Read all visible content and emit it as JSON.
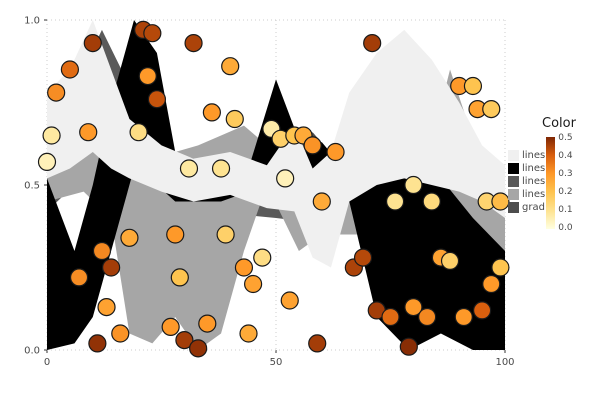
{
  "chart_data": {
    "type": "area",
    "subtype": [
      "ribbon-bands",
      "scatter"
    ],
    "title": "",
    "xlabel": "",
    "ylabel": "",
    "axes": {
      "xlim": [
        0,
        100
      ],
      "ylim": [
        0,
        1
      ],
      "x_ticks": [
        {
          "value": 0,
          "label": "0"
        },
        {
          "value": 50,
          "label": "50"
        },
        {
          "value": 100,
          "label": "100"
        }
      ],
      "y_ticks": [
        {
          "value": 0,
          "label": "0.0"
        },
        {
          "value": 0.5,
          "label": "0.5"
        },
        {
          "value": 1,
          "label": "1.0"
        }
      ],
      "grid": "dotted"
    },
    "legend": {
      "title": "Color",
      "fills": [
        {
          "label": "lines",
          "color": "#f0f0f0"
        },
        {
          "label": "lines",
          "color": "#000000"
        },
        {
          "label": "lines",
          "color": "#5a5a5a"
        },
        {
          "label": "lines",
          "color": "#a6a6a6"
        },
        {
          "label": "grad",
          "color": "#4d4d4d"
        }
      ],
      "colorbar_ticks": [
        "0.5",
        "0.4",
        "0.3",
        "0.2",
        "0.1",
        "0.0"
      ],
      "colorbar_range": [
        0,
        0.5
      ]
    },
    "colormap": {
      "stops": [
        [
          0.0,
          "#ffffe0"
        ],
        [
          0.1,
          "#fee391"
        ],
        [
          0.2,
          "#fec44f"
        ],
        [
          0.3,
          "#fe9929"
        ],
        [
          0.4,
          "#d95f0e"
        ],
        [
          0.5,
          "#7f2704"
        ]
      ]
    },
    "ribbons": [
      {
        "label": "lines",
        "color": "#5a5a5a",
        "x": [
          0,
          6,
          12,
          18,
          24,
          35,
          50,
          62,
          75,
          88,
          95,
          100
        ],
        "ymax": [
          0.6,
          0.8,
          0.97,
          0.8,
          0.62,
          0.55,
          0.52,
          0.5,
          0.52,
          0.55,
          0.5,
          0.45
        ],
        "ymin": [
          0.42,
          0.5,
          0.55,
          0.5,
          0.45,
          0.42,
          0.4,
          0.38,
          0.4,
          0.42,
          0.1,
          0.0
        ]
      },
      {
        "label": "grad",
        "color": "#4d4d4d",
        "x": [
          46,
          52,
          58,
          63,
          68
        ],
        "ymax": [
          0.58,
          0.62,
          0.66,
          0.58,
          0.54
        ],
        "ymin": [
          0.52,
          0.5,
          0.52,
          0.5,
          0.48
        ]
      },
      {
        "label": "lines",
        "color": "#a6a6a6",
        "x": [
          0,
          8,
          14,
          18,
          23,
          28,
          33,
          38,
          43,
          48,
          55,
          60,
          68,
          75,
          82,
          88,
          94,
          100
        ],
        "ymax": [
          0.55,
          0.62,
          0.6,
          0.62,
          0.65,
          0.6,
          0.62,
          0.65,
          0.68,
          0.62,
          0.6,
          0.55,
          0.5,
          0.5,
          0.52,
          0.85,
          0.6,
          0.5
        ],
        "ymin": [
          0.45,
          0.48,
          0.4,
          0.05,
          0.02,
          0.1,
          0.0,
          0.05,
          0.3,
          0.5,
          0.3,
          0.35,
          0.35,
          0.3,
          0.25,
          0.15,
          0.1,
          0.05
        ]
      },
      {
        "label": "lines",
        "color": "#000000",
        "x": [
          0,
          6,
          10,
          14,
          19,
          24,
          28,
          38,
          44,
          50,
          56,
          60,
          63,
          66,
          72,
          79,
          86,
          93,
          100
        ],
        "ymax": [
          0.52,
          0.3,
          0.5,
          0.75,
          1.0,
          0.9,
          0.6,
          0.55,
          0.55,
          0.82,
          0.6,
          0.63,
          0.58,
          0.55,
          0.52,
          0.55,
          0.52,
          0.4,
          0.3
        ],
        "ymin": [
          0.0,
          0.02,
          0.1,
          0.3,
          0.55,
          0.5,
          0.45,
          0.45,
          0.48,
          0.5,
          0.45,
          0.5,
          0.45,
          0.45,
          0.1,
          0.0,
          0.05,
          0.0,
          0.0
        ]
      },
      {
        "label": "lines",
        "color": "#f0f0f0",
        "x": [
          0,
          5,
          10,
          14,
          18,
          25,
          32,
          40,
          48,
          54,
          58,
          62,
          66,
          72,
          78,
          84,
          90,
          95,
          100
        ],
        "ymax": [
          0.78,
          0.85,
          1.0,
          0.85,
          0.7,
          0.62,
          0.58,
          0.6,
          0.56,
          0.68,
          0.55,
          0.6,
          0.78,
          0.9,
          0.97,
          0.88,
          0.75,
          0.62,
          0.56
        ],
        "ymin": [
          0.52,
          0.55,
          0.6,
          0.55,
          0.52,
          0.48,
          0.45,
          0.47,
          0.43,
          0.42,
          0.28,
          0.25,
          0.45,
          0.5,
          0.52,
          0.5,
          0.48,
          0.45,
          0.4
        ]
      }
    ],
    "points": [
      [
        1,
        0.65,
        0.08
      ],
      [
        2,
        0.78,
        0.32
      ],
      [
        5,
        0.85,
        0.38
      ],
      [
        10,
        0.93,
        0.46
      ],
      [
        9,
        0.66,
        0.3
      ],
      [
        0,
        0.57,
        0.05
      ],
      [
        12,
        0.3,
        0.33
      ],
      [
        14,
        0.25,
        0.46
      ],
      [
        7,
        0.22,
        0.32
      ],
      [
        13,
        0.13,
        0.28
      ],
      [
        11,
        0.02,
        0.48
      ],
      [
        16,
        0.05,
        0.31
      ],
      [
        21,
        0.97,
        0.45
      ],
      [
        23,
        0.96,
        0.44
      ],
      [
        22,
        0.83,
        0.3
      ],
      [
        24,
        0.76,
        0.42
      ],
      [
        18,
        0.34,
        0.26
      ],
      [
        20,
        0.66,
        0.12
      ],
      [
        27,
        0.07,
        0.3
      ],
      [
        30,
        0.03,
        0.46
      ],
      [
        33,
        0.005,
        0.48
      ],
      [
        35,
        0.08,
        0.3
      ],
      [
        32,
        0.93,
        0.45
      ],
      [
        31,
        0.55,
        0.08
      ],
      [
        28,
        0.35,
        0.3
      ],
      [
        29,
        0.22,
        0.2
      ],
      [
        36,
        0.72,
        0.3
      ],
      [
        40,
        0.86,
        0.26
      ],
      [
        41,
        0.7,
        0.18
      ],
      [
        38,
        0.55,
        0.1
      ],
      [
        39,
        0.35,
        0.16
      ],
      [
        43,
        0.25,
        0.3
      ],
      [
        45,
        0.2,
        0.28
      ],
      [
        44,
        0.05,
        0.26
      ],
      [
        47,
        0.28,
        0.12
      ],
      [
        49,
        0.67,
        0.07
      ],
      [
        51,
        0.64,
        0.16
      ],
      [
        52,
        0.52,
        0.05
      ],
      [
        54,
        0.65,
        0.2
      ],
      [
        56,
        0.65,
        0.26
      ],
      [
        58,
        0.62,
        0.31
      ],
      [
        60,
        0.45,
        0.26
      ],
      [
        53,
        0.15,
        0.28
      ],
      [
        59,
        0.02,
        0.46
      ],
      [
        63,
        0.6,
        0.3
      ],
      [
        67,
        0.25,
        0.45
      ],
      [
        69,
        0.28,
        0.44
      ],
      [
        71,
        0.93,
        0.46
      ],
      [
        72,
        0.12,
        0.46
      ],
      [
        75,
        0.1,
        0.38
      ],
      [
        79,
        0.01,
        0.49
      ],
      [
        80,
        0.13,
        0.3
      ],
      [
        83,
        0.1,
        0.33
      ],
      [
        80,
        0.5,
        0.1
      ],
      [
        84,
        0.45,
        0.13
      ],
      [
        86,
        0.28,
        0.28
      ],
      [
        88,
        0.27,
        0.16
      ],
      [
        90,
        0.8,
        0.3
      ],
      [
        93,
        0.8,
        0.2
      ],
      [
        94,
        0.73,
        0.28
      ],
      [
        97,
        0.73,
        0.18
      ],
      [
        91,
        0.1,
        0.3
      ],
      [
        95,
        0.12,
        0.4
      ],
      [
        97,
        0.2,
        0.3
      ],
      [
        99,
        0.25,
        0.2
      ],
      [
        96,
        0.45,
        0.15
      ],
      [
        99,
        0.45,
        0.22
      ],
      [
        76,
        0.45,
        0.1
      ]
    ]
  }
}
